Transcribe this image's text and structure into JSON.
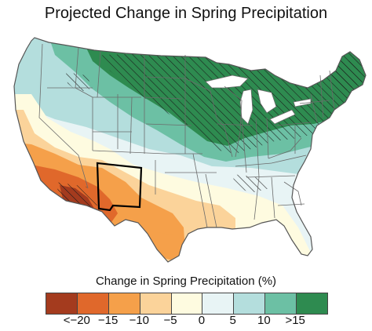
{
  "title": "Projected Change in Spring Precipitation",
  "legend": {
    "title": "Change in Spring Precipitation (%)",
    "colors": [
      "#a43b1e",
      "#e0682b",
      "#f5a04a",
      "#fbd39a",
      "#fefbe0",
      "#e8f4f5",
      "#b4dedd",
      "#6cc0a4",
      "#2e8b50"
    ],
    "ticks": [
      "<−20",
      "−15",
      "−10",
      "−5",
      "0",
      "5",
      "10",
      ">15"
    ]
  },
  "colors": {
    "state_border": "#6b6b6b",
    "outline": "#555555",
    "hatch": "#1a1a1a",
    "highlight_border": "#000000"
  }
}
